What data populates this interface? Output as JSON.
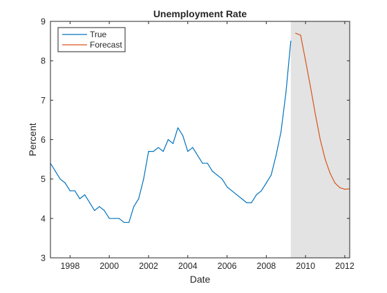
{
  "chart_data": {
    "type": "line",
    "title": "Unemployment Rate",
    "xlabel": "Date",
    "ylabel": "Percent",
    "xlim": [
      "1997-01-01",
      "2012-04-01"
    ],
    "ylim": [
      3,
      9
    ],
    "x_ticks": [
      "1998",
      "2000",
      "2002",
      "2004",
      "2006",
      "2008",
      "2010",
      "2012"
    ],
    "y_ticks": [
      "3",
      "4",
      "5",
      "6",
      "7",
      "8",
      "9"
    ],
    "grid": false,
    "legend_position": "top-left",
    "shaded_region": {
      "from": "2009-04-01",
      "to": "2012-04-01",
      "color": "#e3e3e3"
    },
    "series": [
      {
        "name": "True",
        "color": "#0072bd",
        "points": [
          [
            "1997-01-01",
            5.4
          ],
          [
            "1997-04-01",
            5.2
          ],
          [
            "1997-07-01",
            5.0
          ],
          [
            "1997-10-01",
            4.9
          ],
          [
            "1998-01-01",
            4.7
          ],
          [
            "1998-04-01",
            4.7
          ],
          [
            "1998-07-01",
            4.5
          ],
          [
            "1998-10-01",
            4.6
          ],
          [
            "1999-01-01",
            4.4
          ],
          [
            "1999-04-01",
            4.2
          ],
          [
            "1999-07-01",
            4.3
          ],
          [
            "1999-10-01",
            4.2
          ],
          [
            "2000-01-01",
            4.0
          ],
          [
            "2000-04-01",
            4.0
          ],
          [
            "2000-07-01",
            4.0
          ],
          [
            "2000-10-01",
            3.9
          ],
          [
            "2001-01-01",
            3.9
          ],
          [
            "2001-04-01",
            4.3
          ],
          [
            "2001-07-01",
            4.5
          ],
          [
            "2001-10-01",
            5.0
          ],
          [
            "2002-01-01",
            5.7
          ],
          [
            "2002-04-01",
            5.7
          ],
          [
            "2002-07-01",
            5.8
          ],
          [
            "2002-10-01",
            5.7
          ],
          [
            "2003-01-01",
            6.0
          ],
          [
            "2003-04-01",
            5.9
          ],
          [
            "2003-07-01",
            6.3
          ],
          [
            "2003-10-01",
            6.1
          ],
          [
            "2004-01-01",
            5.7
          ],
          [
            "2004-04-01",
            5.8
          ],
          [
            "2004-07-01",
            5.6
          ],
          [
            "2004-10-01",
            5.4
          ],
          [
            "2005-01-01",
            5.4
          ],
          [
            "2005-04-01",
            5.2
          ],
          [
            "2005-07-01",
            5.1
          ],
          [
            "2005-10-01",
            5.0
          ],
          [
            "2006-01-01",
            4.8
          ],
          [
            "2006-04-01",
            4.7
          ],
          [
            "2006-07-01",
            4.6
          ],
          [
            "2006-10-01",
            4.5
          ],
          [
            "2007-01-01",
            4.4
          ],
          [
            "2007-04-01",
            4.4
          ],
          [
            "2007-07-01",
            4.6
          ],
          [
            "2007-10-01",
            4.7
          ],
          [
            "2008-01-01",
            4.9
          ],
          [
            "2008-04-01",
            5.1
          ],
          [
            "2008-07-01",
            5.6
          ],
          [
            "2008-10-01",
            6.2
          ],
          [
            "2009-01-01",
            7.2
          ],
          [
            "2009-04-01",
            8.5
          ]
        ]
      },
      {
        "name": "Forecast",
        "color": "#d95319",
        "points": [
          [
            "2009-07-01",
            8.7
          ],
          [
            "2009-10-01",
            8.65
          ],
          [
            "2010-01-01",
            8.0
          ],
          [
            "2010-04-01",
            7.35
          ],
          [
            "2010-07-01",
            6.65
          ],
          [
            "2010-10-01",
            6.0
          ],
          [
            "2011-01-01",
            5.5
          ],
          [
            "2011-04-01",
            5.15
          ],
          [
            "2011-07-01",
            4.9
          ],
          [
            "2011-10-01",
            4.78
          ],
          [
            "2012-01-01",
            4.74
          ],
          [
            "2012-04-01",
            4.75
          ]
        ]
      }
    ]
  }
}
